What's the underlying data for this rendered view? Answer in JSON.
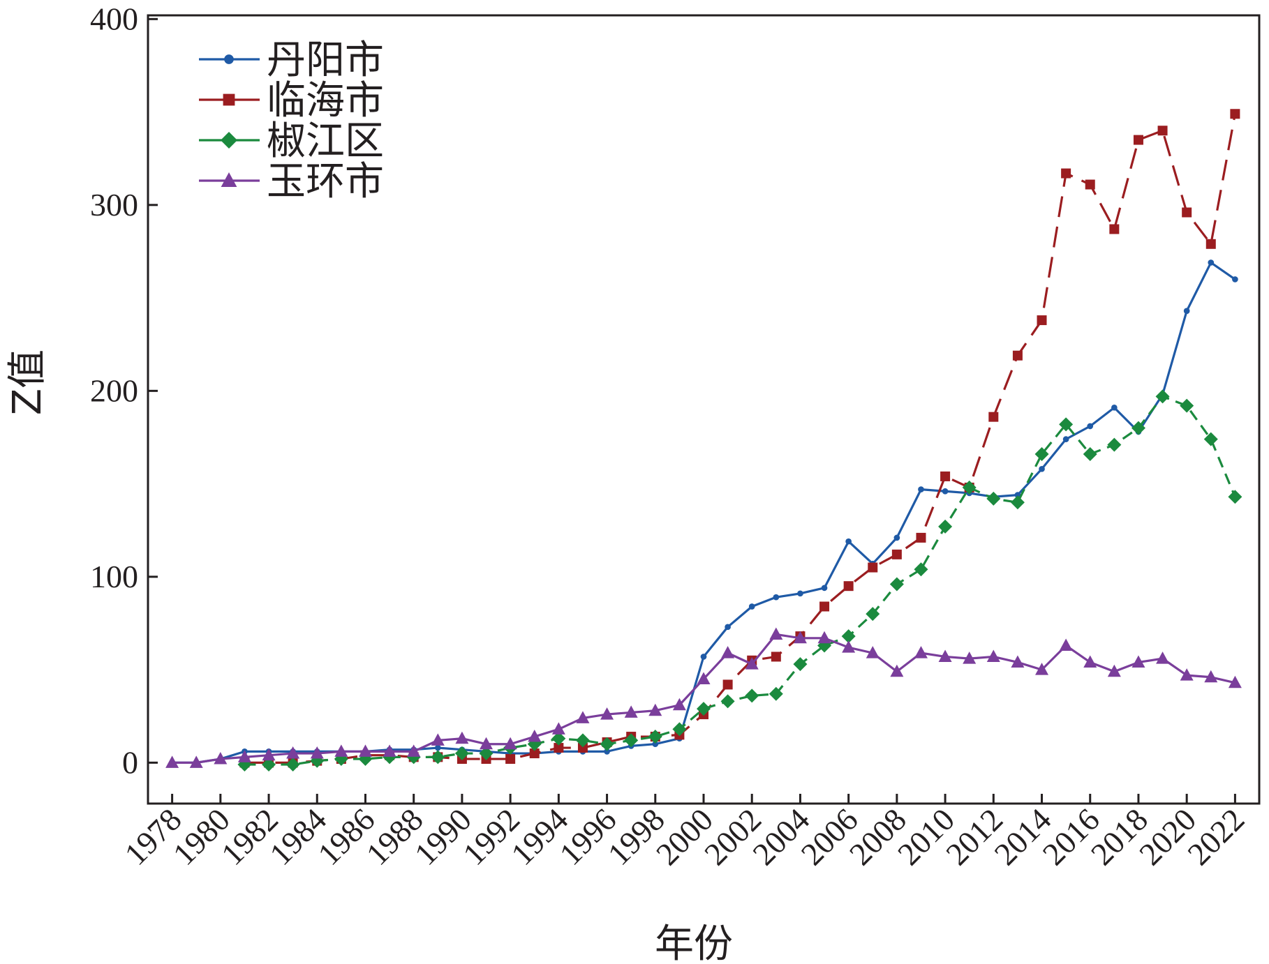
{
  "chart_data": {
    "type": "line",
    "title": "",
    "xlabel": "年份",
    "ylabel": "Z值",
    "xlim": [
      1977,
      2023
    ],
    "ylim": [
      -22,
      402
    ],
    "yticks": [
      0,
      100,
      200,
      300,
      400
    ],
    "xticks": [
      "1978",
      "1980",
      "1982",
      "1984",
      "1986",
      "1988",
      "1990",
      "1992",
      "1994",
      "1996",
      "1998",
      "2000",
      "2002",
      "2004",
      "2006",
      "2008",
      "2010",
      "2012",
      "2014",
      "2016",
      "2018",
      "2020",
      "2022"
    ],
    "legend_position": "top-left",
    "grid": false,
    "series": [
      {
        "name": "丹阳市",
        "color": "#1f5aa6",
        "marker": "circle",
        "dash": "solid",
        "x": [
          1978,
          1979,
          1980,
          1981,
          1982,
          1983,
          1984,
          1985,
          1986,
          1987,
          1988,
          1989,
          1990,
          1991,
          1992,
          1993,
          1994,
          1995,
          1996,
          1997,
          1998,
          1999,
          2000,
          2001,
          2002,
          2003,
          2004,
          2005,
          2006,
          2007,
          2008,
          2009,
          2010,
          2011,
          2012,
          2013,
          2014,
          2015,
          2016,
          2017,
          2018,
          2019,
          2020,
          2021,
          2022
        ],
        "y": [
          0,
          0,
          2,
          6,
          6,
          6,
          6,
          6,
          6,
          7,
          7,
          8,
          7,
          6,
          5,
          5,
          6,
          6,
          6,
          9,
          10,
          13,
          57,
          73,
          84,
          89,
          91,
          94,
          119,
          107,
          121,
          147,
          146,
          145,
          143,
          144,
          158,
          174,
          181,
          191,
          178,
          198,
          243,
          269,
          260
        ]
      },
      {
        "name": "临海市",
        "color": "#9b1d20",
        "marker": "square",
        "dash": "long-dash",
        "x": [
          1981,
          1982,
          1983,
          1984,
          1985,
          1986,
          1987,
          1988,
          1989,
          1990,
          1991,
          1992,
          1993,
          1994,
          1995,
          1996,
          1997,
          1998,
          1999,
          2000,
          2001,
          2002,
          2003,
          2004,
          2005,
          2006,
          2007,
          2008,
          2009,
          2010,
          2011,
          2012,
          2013,
          2014,
          2015,
          2016,
          2017,
          2018,
          2019,
          2020,
          2021,
          2022
        ],
        "y": [
          0,
          0,
          0,
          1,
          2,
          4,
          4,
          3,
          3,
          2,
          2,
          2,
          5,
          8,
          8,
          11,
          14,
          14,
          15,
          26,
          42,
          55,
          57,
          68,
          84,
          95,
          105,
          112,
          121,
          154,
          148,
          186,
          219,
          238,
          317,
          311,
          287,
          335,
          340,
          296,
          279,
          349
        ]
      },
      {
        "name": "椒江区",
        "color": "#1b8a3e",
        "marker": "diamond",
        "dash": "short-dash",
        "x": [
          1981,
          1982,
          1983,
          1984,
          1985,
          1986,
          1987,
          1988,
          1989,
          1990,
          1991,
          1992,
          1993,
          1994,
          1995,
          1996,
          1997,
          1998,
          1999,
          2000,
          2001,
          2002,
          2003,
          2004,
          2005,
          2006,
          2007,
          2008,
          2009,
          2010,
          2011,
          2012,
          2013,
          2014,
          2015,
          2016,
          2017,
          2018,
          2019,
          2020,
          2021,
          2022
        ],
        "y": [
          -1,
          -1,
          -1,
          1,
          2,
          2,
          3,
          3,
          3,
          5,
          5,
          8,
          10,
          13,
          12,
          10,
          12,
          14,
          18,
          29,
          33,
          36,
          37,
          53,
          63,
          68,
          80,
          96,
          104,
          127,
          148,
          142,
          140,
          166,
          182,
          166,
          171,
          180,
          197,
          192,
          174,
          143
        ]
      },
      {
        "name": "玉环市",
        "color": "#7a3e9b",
        "marker": "triangle",
        "dash": "solid",
        "x": [
          1978,
          1979,
          1980,
          1981,
          1982,
          1983,
          1984,
          1985,
          1986,
          1987,
          1988,
          1989,
          1990,
          1991,
          1992,
          1993,
          1994,
          1995,
          1996,
          1997,
          1998,
          1999,
          2000,
          2001,
          2002,
          2003,
          2004,
          2005,
          2006,
          2007,
          2008,
          2009,
          2010,
          2011,
          2012,
          2013,
          2014,
          2015,
          2016,
          2017,
          2018,
          2019,
          2020,
          2021,
          2022
        ],
        "y": [
          0,
          0,
          2,
          3,
          4,
          5,
          5,
          6,
          6,
          6,
          6,
          12,
          13,
          10,
          10,
          14,
          18,
          24,
          26,
          27,
          28,
          31,
          45,
          59,
          53,
          69,
          67,
          67,
          62,
          59,
          49,
          59,
          57,
          56,
          57,
          54,
          50,
          63,
          54,
          49,
          54,
          56,
          47,
          46,
          43
        ]
      }
    ]
  }
}
